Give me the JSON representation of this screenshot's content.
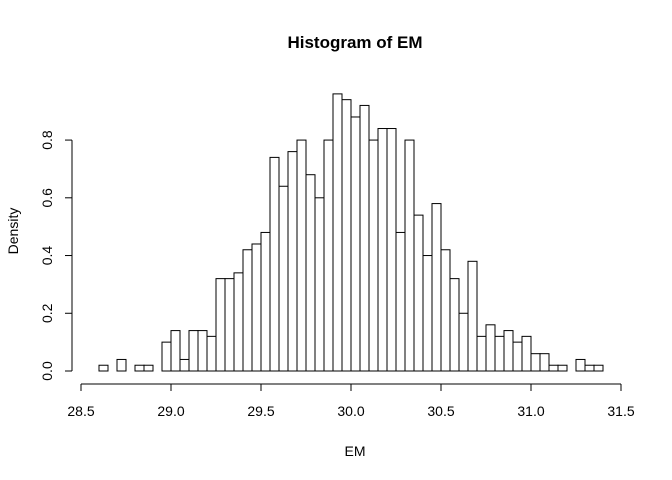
{
  "chart_data": {
    "type": "histogram",
    "title": "Histogram of EM",
    "xlabel": "EM",
    "ylabel": "Density",
    "xlim": [
      28.5,
      31.5
    ],
    "ylim": [
      0,
      0.97
    ],
    "xticks": [
      "28.5",
      "29.0",
      "29.5",
      "30.0",
      "30.5",
      "31.0",
      "31.5"
    ],
    "xtick_values": [
      28.5,
      29.0,
      29.5,
      30.0,
      30.5,
      31.0,
      31.5
    ],
    "yticks": [
      "0.0",
      "0.2",
      "0.4",
      "0.6",
      "0.8"
    ],
    "ytick_values": [
      0,
      0.2,
      0.4,
      0.6,
      0.8
    ],
    "bin_start": 28.6,
    "bin_width": 0.05,
    "values": [
      0.02,
      0.0,
      0.04,
      0.0,
      0.02,
      0.02,
      0.0,
      0.1,
      0.14,
      0.04,
      0.14,
      0.14,
      0.12,
      0.32,
      0.32,
      0.34,
      0.42,
      0.44,
      0.48,
      0.74,
      0.64,
      0.76,
      0.8,
      0.68,
      0.6,
      0.8,
      0.96,
      0.94,
      0.88,
      0.92,
      0.8,
      0.84,
      0.84,
      0.48,
      0.8,
      0.54,
      0.4,
      0.58,
      0.42,
      0.32,
      0.2,
      0.38,
      0.12,
      0.16,
      0.12,
      0.14,
      0.1,
      0.12,
      0.06,
      0.06,
      0.02,
      0.02,
      0.0,
      0.04,
      0.02,
      0.02
    ],
    "colors": {
      "bar_fill": "#ffffff",
      "bar_stroke": "#000000"
    },
    "grid": false
  }
}
